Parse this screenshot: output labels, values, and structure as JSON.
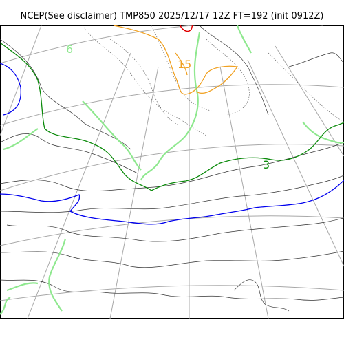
{
  "title": "NCEP(See disclaimer) TMP850 2025/12/17 12Z FT=192 (init 0912Z)",
  "contour_labels": {
    "green_3": "3",
    "orange_15": "15",
    "lightgreen_6": "6"
  },
  "colors": {
    "background": "#ffffff",
    "frame": "#000000",
    "grid": "#a8a8a8",
    "coastline": "#333333",
    "isotherm_0": "#0a8a0a",
    "isotherm_lightgreen": "#8fe88f",
    "isotherm_blue": "#0000ee",
    "isotherm_orange": "#f0a020",
    "isotherm_red": "#e00000"
  }
}
